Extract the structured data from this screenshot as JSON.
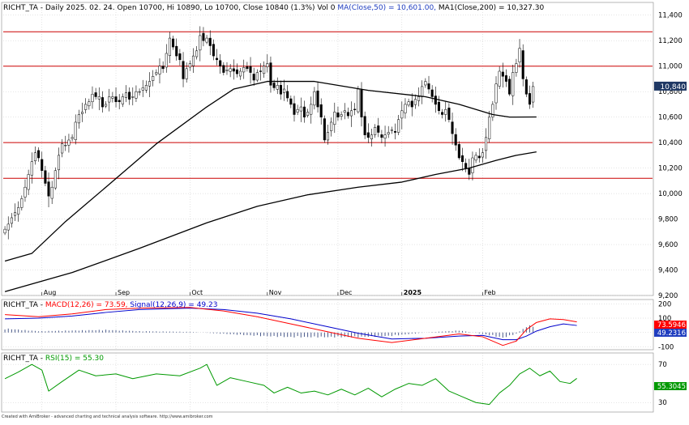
{
  "header": {
    "main": "RICHT_TA - Daily 2025. 02. 24. Open 10700, Hi 10890, Lo 10700, Close 10840 (1.3%) Vol 0",
    "ma50": "MA(Close,50) = 10,601.00,",
    "ma200": "MA1(Close,200) = 10,327.30",
    "macd_prefix": "RICHT_TA - ",
    "macd_label": "MACD(12,26) = 73.59,",
    "signal_label": "Signal(12,26,9) = 49.23",
    "rsi_prefix": "RICHT_TA - ",
    "rsi_label": "RSI(15) = 55.30"
  },
  "footer": "Created with AmiBroker - advanced charting and technical analysis software. http://www.amibroker.com",
  "colors": {
    "up": "#ffffff",
    "down": "#000000",
    "ma50": "#000000",
    "ma200": "#000000",
    "hline": "#cc0000",
    "macd": "#ff0000",
    "signal": "#0000cc",
    "hist": "#4a5a8a",
    "rsi": "#009900",
    "grid": "#c8c8c8",
    "badge_price": "#1f3864",
    "badge_macd": "#ff0000",
    "badge_signal": "#1f3dbf",
    "badge_rsi": "#009900"
  },
  "chart_data": [
    {
      "type": "candlestick",
      "title": "RICHT_TA - Daily",
      "ylim": [
        9200,
        11500
      ],
      "yticks": [
        9200,
        9400,
        9600,
        9800,
        10000,
        10200,
        10400,
        10600,
        10800,
        11000,
        11200,
        11400
      ],
      "ytick_labels": [
        "9,200",
        "9,400",
        "9,600",
        "9,800",
        "10,000",
        "10,200",
        "10,400",
        "10,600",
        "10,800",
        "11,000",
        "11,200",
        "11,400"
      ],
      "xticks": [
        {
          "label": "Aug",
          "index": 11
        },
        {
          "label": "Sep",
          "index": 33
        },
        {
          "label": "Oct",
          "index": 55
        },
        {
          "label": "Nov",
          "index": 78
        },
        {
          "label": "Dec",
          "index": 99
        },
        {
          "label": "2025",
          "index": 118
        },
        {
          "label": "Feb",
          "index": 142
        }
      ],
      "horizontal_lines": [
        10120,
        10400,
        11000,
        11270
      ],
      "last_close_label": "10,840",
      "series": [
        {
          "name": "MA(Close,50)",
          "kind": "line",
          "points": [
            [
              0,
              9470
            ],
            [
              8,
              9530
            ],
            [
              18,
              9780
            ],
            [
              30,
              10050
            ],
            [
              45,
              10390
            ],
            [
              60,
              10680
            ],
            [
              68,
              10820
            ],
            [
              78,
              10880
            ],
            [
              92,
              10880
            ],
            [
              108,
              10810
            ],
            [
              125,
              10760
            ],
            [
              135,
              10700
            ],
            [
              145,
              10620
            ],
            [
              150,
              10600
            ],
            [
              158,
              10601
            ]
          ]
        },
        {
          "name": "MA1(Close,200)",
          "kind": "line",
          "points": [
            [
              0,
              9230
            ],
            [
              20,
              9380
            ],
            [
              40,
              9570
            ],
            [
              60,
              9770
            ],
            [
              75,
              9900
            ],
            [
              90,
              9990
            ],
            [
              105,
              10050
            ],
            [
              118,
              10090
            ],
            [
              128,
              10150
            ],
            [
              138,
              10200
            ],
            [
              146,
              10260
            ],
            [
              152,
              10300
            ],
            [
              158,
              10327
            ]
          ]
        }
      ],
      "closes": [
        9720,
        9760,
        9810,
        9850,
        9890,
        9960,
        10050,
        10150,
        10250,
        10320,
        10280,
        10180,
        10080,
        9980,
        10050,
        10180,
        10300,
        10390,
        10380,
        10420,
        10440,
        10560,
        10620,
        10640,
        10700,
        10720,
        10780,
        10760,
        10760,
        10680,
        10700,
        10760,
        10760,
        10720,
        10720,
        10760,
        10790,
        10740,
        10760,
        10800,
        10800,
        10830,
        10850,
        10880,
        10920,
        10950,
        11000,
        10980,
        11100,
        11220,
        11150,
        11080,
        11050,
        10900,
        10980,
        11020,
        11080,
        11120,
        11240,
        11200,
        11220,
        11160,
        11080,
        11050,
        11000,
        10950,
        10970,
        10980,
        10960,
        10940,
        10960,
        10990,
        10980,
        10950,
        10890,
        10950,
        10960,
        11000,
        11020,
        10850,
        10830,
        10850,
        10780,
        10820,
        10750,
        10700,
        10620,
        10660,
        10680,
        10600,
        10640,
        10700,
        10800,
        10680,
        10600,
        10420,
        10480,
        10560,
        10640,
        10600,
        10620,
        10650,
        10610,
        10650,
        10660,
        10820,
        10600,
        10460,
        10440,
        10460,
        10520,
        10480,
        10440,
        10460,
        10480,
        10500,
        10480,
        10580,
        10650,
        10700,
        10720,
        10680,
        10740,
        10760,
        10840,
        10880,
        10820,
        10760,
        10700,
        10650,
        10620,
        10660,
        10580,
        10470,
        10380,
        10280,
        10250,
        10200,
        10150,
        10280,
        10300,
        10280,
        10320,
        10440,
        10600,
        10700,
        10860,
        10960,
        10920,
        10880,
        10780,
        10950,
        11020,
        11140,
        10900,
        10780,
        10700,
        10840
      ]
    },
    {
      "type": "line",
      "title": "MACD(12,26)",
      "ylim": [
        -120,
        230
      ],
      "yticks": [
        -100,
        0,
        100,
        200
      ],
      "ytick_labels": [
        "-100",
        "0",
        "100",
        "200"
      ],
      "badges": {
        "macd": "73.5946",
        "signal": "49.2316"
      },
      "series": [
        {
          "name": "MACD(12,26)",
          "points": [
            [
              0,
              125
            ],
            [
              10,
              110
            ],
            [
              20,
              130
            ],
            [
              30,
              160
            ],
            [
              40,
              170
            ],
            [
              55,
              175
            ],
            [
              65,
              150
            ],
            [
              75,
              110
            ],
            [
              85,
              60
            ],
            [
              95,
              10
            ],
            [
              105,
              -40
            ],
            [
              115,
              -70
            ],
            [
              125,
              -40
            ],
            [
              135,
              -10
            ],
            [
              142,
              -30
            ],
            [
              148,
              -90
            ],
            [
              152,
              -60
            ],
            [
              155,
              20
            ],
            [
              158,
              70
            ],
            [
              162,
              95
            ],
            [
              166,
              90
            ],
            [
              170,
              74
            ]
          ]
        },
        {
          "name": "Signal(12,26,9)",
          "points": [
            [
              0,
              95
            ],
            [
              10,
              100
            ],
            [
              20,
              115
            ],
            [
              30,
              140
            ],
            [
              40,
              160
            ],
            [
              55,
              170
            ],
            [
              65,
              160
            ],
            [
              75,
              135
            ],
            [
              85,
              95
            ],
            [
              95,
              45
            ],
            [
              105,
              -5
            ],
            [
              115,
              -45
            ],
            [
              125,
              -40
            ],
            [
              135,
              -25
            ],
            [
              142,
              -20
            ],
            [
              148,
              -50
            ],
            [
              152,
              -50
            ],
            [
              155,
              -25
            ],
            [
              158,
              10
            ],
            [
              162,
              40
            ],
            [
              166,
              60
            ],
            [
              170,
              49
            ]
          ]
        },
        {
          "name": "Histogram",
          "points": [
            [
              0,
              30
            ],
            [
              10,
              10
            ],
            [
              20,
              15
            ],
            [
              30,
              20
            ],
            [
              40,
              10
            ],
            [
              55,
              5
            ],
            [
              65,
              -10
            ],
            [
              75,
              -25
            ],
            [
              85,
              -35
            ],
            [
              95,
              -35
            ],
            [
              105,
              -35
            ],
            [
              115,
              -25
            ],
            [
              125,
              0
            ],
            [
              135,
              15
            ],
            [
              142,
              -10
            ],
            [
              148,
              -40
            ],
            [
              152,
              -10
            ],
            [
              155,
              45
            ],
            [
              158,
              60
            ],
            [
              162,
              55
            ],
            [
              166,
              30
            ],
            [
              170,
              25
            ]
          ]
        }
      ]
    },
    {
      "type": "line",
      "title": "RSI(15)",
      "ylim": [
        20,
        82
      ],
      "yticks": [
        30,
        70
      ],
      "ytick_labels": [
        "30",
        "70"
      ],
      "badges": {
        "rsi": "55.3045"
      },
      "series": [
        {
          "name": "RSI(15)",
          "points": [
            [
              0,
              55
            ],
            [
              4,
              62
            ],
            [
              8,
              70
            ],
            [
              11,
              64
            ],
            [
              13,
              42
            ],
            [
              17,
              52
            ],
            [
              22,
              64
            ],
            [
              27,
              58
            ],
            [
              33,
              60
            ],
            [
              38,
              55
            ],
            [
              45,
              60
            ],
            [
              52,
              58
            ],
            [
              58,
              66
            ],
            [
              60,
              70
            ],
            [
              63,
              48
            ],
            [
              67,
              56
            ],
            [
              72,
              52
            ],
            [
              77,
              48
            ],
            [
              80,
              40
            ],
            [
              84,
              46
            ],
            [
              88,
              40
            ],
            [
              92,
              42
            ],
            [
              96,
              38
            ],
            [
              100,
              44
            ],
            [
              104,
              38
            ],
            [
              108,
              45
            ],
            [
              112,
              36
            ],
            [
              116,
              44
            ],
            [
              120,
              50
            ],
            [
              124,
              48
            ],
            [
              128,
              55
            ],
            [
              132,
              42
            ],
            [
              136,
              36
            ],
            [
              140,
              30
            ],
            [
              144,
              28
            ],
            [
              147,
              40
            ],
            [
              150,
              48
            ],
            [
              153,
              60
            ],
            [
              156,
              66
            ],
            [
              159,
              58
            ],
            [
              162,
              63
            ],
            [
              165,
              52
            ],
            [
              168,
              50
            ],
            [
              170,
              55.3
            ]
          ]
        }
      ]
    }
  ]
}
